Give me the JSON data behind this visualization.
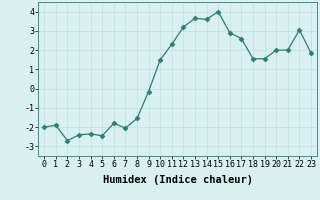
{
  "x": [
    0,
    1,
    2,
    3,
    4,
    5,
    6,
    7,
    8,
    9,
    10,
    11,
    12,
    13,
    14,
    15,
    16,
    17,
    18,
    19,
    20,
    21,
    22,
    23
  ],
  "y": [
    -2.0,
    -1.9,
    -2.7,
    -2.4,
    -2.35,
    -2.45,
    -1.8,
    -2.05,
    -1.55,
    -0.15,
    1.5,
    2.3,
    3.2,
    3.65,
    3.6,
    4.0,
    2.9,
    2.6,
    1.55,
    1.55,
    2.0,
    2.0,
    3.05,
    1.85
  ],
  "line_color": "#2e7d6e",
  "marker": "D",
  "marker_size": 2.5,
  "bg_color": "#d8f0ef",
  "grid_color": "#c0dedd",
  "xlabel": "Humidex (Indice chaleur)",
  "xlim": [
    -0.5,
    23.5
  ],
  "ylim": [
    -3.5,
    4.5
  ],
  "yticks": [
    -3,
    -2,
    -1,
    0,
    1,
    2,
    3,
    4
  ],
  "xticks": [
    0,
    1,
    2,
    3,
    4,
    5,
    6,
    7,
    8,
    9,
    10,
    11,
    12,
    13,
    14,
    15,
    16,
    17,
    18,
    19,
    20,
    21,
    22,
    23
  ],
  "tick_label_fontsize": 6,
  "xlabel_fontsize": 7.5
}
